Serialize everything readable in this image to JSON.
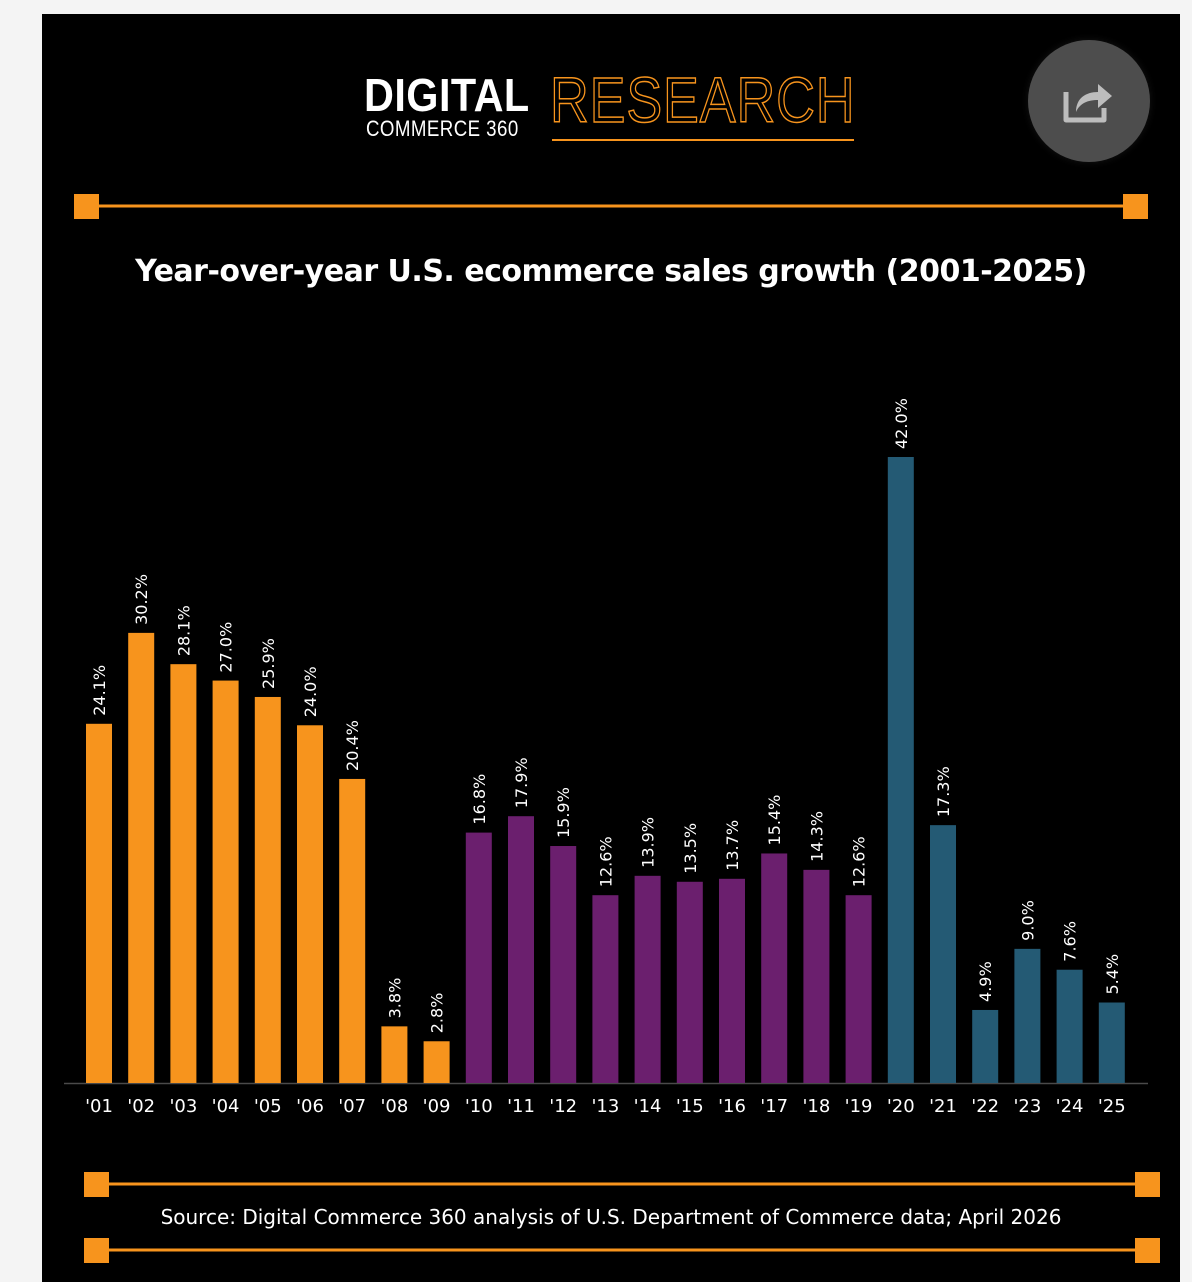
{
  "logo": {
    "digital": "DIGITAL",
    "commerce": "COMMERCE 360",
    "research": "RESEARCH"
  },
  "share_icon": "share-icon",
  "colors": {
    "background": "#000000",
    "accent": "#f7941d",
    "series_2001_2009": "#f7941d",
    "series_2010_2019": "#6b1f6e",
    "series_2020_2025": "#245a74",
    "text": "#ffffff"
  },
  "chart_data": {
    "type": "bar",
    "title": "Year-over-year U.S. ecommerce sales growth  (2001-2025)",
    "categories": [
      "'01",
      "'02",
      "'03",
      "'04",
      "'05",
      "'06",
      "'07",
      "'08",
      "'09",
      "'10",
      "'11",
      "'12",
      "'13",
      "'14",
      "'15",
      "'16",
      "'17",
      "'18",
      "'19",
      "'20",
      "'21",
      "'22",
      "'23",
      "'24",
      "'25"
    ],
    "values": [
      24.1,
      30.2,
      28.1,
      27.0,
      25.9,
      24.0,
      20.4,
      3.8,
      2.8,
      16.8,
      17.9,
      15.9,
      12.6,
      13.9,
      13.5,
      13.7,
      15.4,
      14.3,
      12.6,
      42.0,
      17.3,
      4.9,
      9.0,
      7.6,
      5.4
    ],
    "data_labels": [
      "24.1%",
      "30.2%",
      "28.1%",
      "27.0%",
      "25.9%",
      "24.0%",
      "20.4%",
      "3.8%",
      "2.8%",
      "16.8%",
      "17.9%",
      "15.9%",
      "12.6%",
      "13.9%",
      "13.5%",
      "13.7%",
      "15.4%",
      "14.3%",
      "12.6%",
      "42.0%",
      "17.3%",
      "4.9%",
      "9.0%",
      "7.6%",
      "5.4%"
    ],
    "bar_color_groups": [
      {
        "from": "'01",
        "to": "'09",
        "color": "#f7941d"
      },
      {
        "from": "'10",
        "to": "'19",
        "color": "#6b1f6e"
      },
      {
        "from": "'20",
        "to": "'25",
        "color": "#245a74"
      }
    ],
    "ylim": [
      0,
      42.0
    ],
    "xlabel": "",
    "ylabel": "",
    "grid": false,
    "legend": "none"
  },
  "source": "Source: Digital Commerce 360 analysis of U.S. Department of Commerce data; April 2026"
}
